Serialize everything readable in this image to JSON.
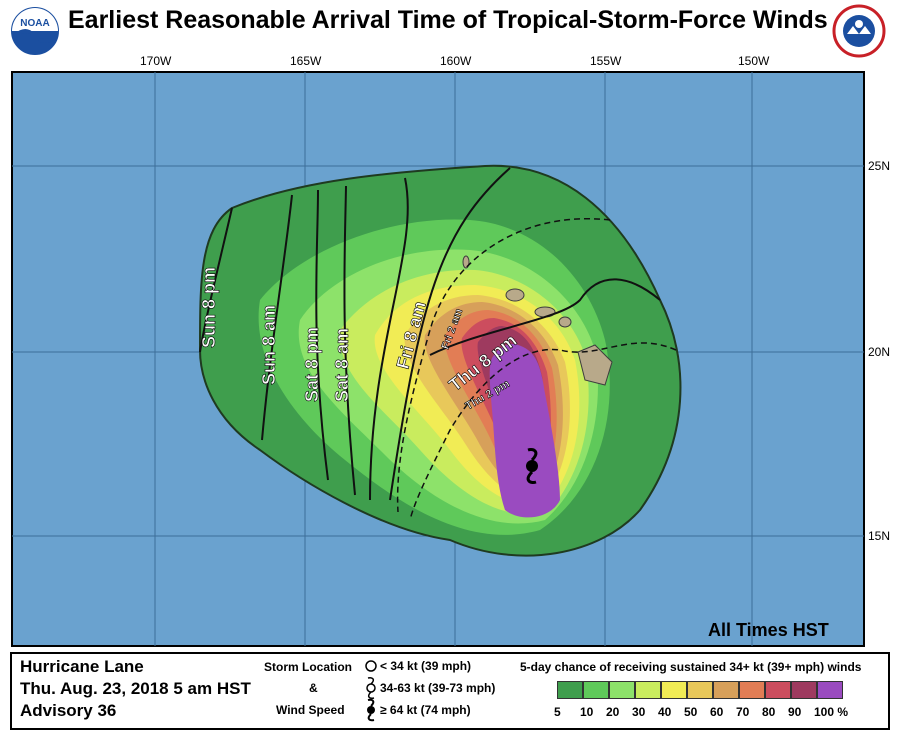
{
  "title": "Earliest Reasonable Arrival Time of Tropical-Storm-Force Winds",
  "agency_logo_left": "NOAA",
  "agency_logo_right": "NATIONAL WEATHER SERVICE",
  "map": {
    "lon_labels": [
      "170W",
      "165W",
      "160W",
      "155W",
      "150W"
    ],
    "lat_labels": [
      "25N",
      "20N",
      "15N"
    ],
    "ocean_color": "#6aa2cf",
    "time_zone_note": "All Times HST",
    "contours": [
      {
        "day": "Sun",
        "time": "8 pm"
      },
      {
        "day": "Sun",
        "time": "8 am"
      },
      {
        "day": "Sat",
        "time": "8 pm"
      },
      {
        "day": "Sat",
        "time": "8 am"
      },
      {
        "day": "Fri",
        "time": "8 am"
      },
      {
        "day": "Thu",
        "time": "8 pm"
      }
    ],
    "dashed_contours": [
      {
        "day": "Fri",
        "time": "2 am"
      },
      {
        "day": "Thu",
        "time": "2 pm"
      }
    ],
    "storm_symbol": "hurricane-icon"
  },
  "footer": {
    "storm_name": "Hurricane Lane",
    "issued": "Thu. Aug. 23, 2018  5 am HST",
    "advisory": "Advisory 36",
    "storm_location_label": "Storm Location",
    "amp": "&",
    "wind_speed_label": "Wind Speed",
    "categories": [
      {
        "label": "< 34 kt (39 mph)",
        "icon": "open-circle-icon"
      },
      {
        "label": "34-63 kt (39-73 mph)",
        "icon": "tropical-storm-icon"
      },
      {
        "label": "≥ 64 kt (74 mph)",
        "icon": "hurricane-icon"
      }
    ],
    "probability_title": "5-day chance of receiving sustained 34+ kt (39+ mph) winds",
    "probability_ticks": [
      "5",
      "10",
      "20",
      "30",
      "40",
      "50",
      "60",
      "70",
      "80",
      "90",
      "100 %"
    ],
    "probability_colors": [
      "#3f9e4d",
      "#5fc95a",
      "#8de26a",
      "#c9ec5e",
      "#f1ec55",
      "#e8c85a",
      "#d7a05a",
      "#e27d55",
      "#cc4d5e",
      "#9e3a5f",
      "#9a4bc0"
    ]
  }
}
